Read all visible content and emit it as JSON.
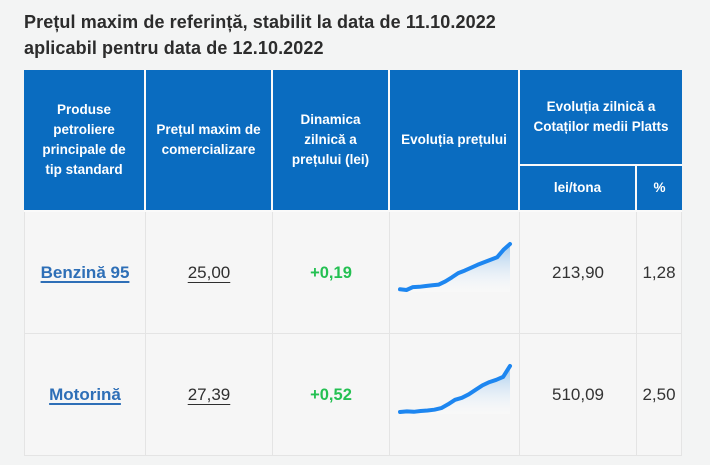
{
  "title": {
    "line1": "Prețul maxim de referință, stabilit la data de 11.10.2022",
    "line2": "aplicabil pentru data de 12.10.2022"
  },
  "table": {
    "headers": {
      "product": "Produse petroliere principale de tip standard",
      "max_price": "Prețul maxim de comercializare",
      "daily_dynamic": "Dinamica zilnică a prețului (lei)",
      "price_evolution": "Evoluția prețului",
      "platts": "Evoluția zilnică a Cotaților medii Platts",
      "platts_lei": "lei/tona",
      "platts_pct": "%"
    },
    "rows": [
      {
        "product": "Benzină 95",
        "max_price": "25,00",
        "daily_delta": "+0,19",
        "platts_lei": "213,90",
        "platts_pct": "1,28"
      },
      {
        "product": "Motorină",
        "max_price": "27,39",
        "daily_delta": "+0,52",
        "platts_lei": "510,09",
        "platts_pct": "2,50"
      }
    ]
  },
  "chart_data": [
    {
      "type": "line",
      "name": "Evoluția prețului — Benzină 95",
      "values": [
        1.0,
        0.9,
        1.3,
        1.35,
        1.45,
        1.55,
        1.65,
        2.1,
        2.65,
        3.25,
        3.6,
        4.0,
        4.4,
        4.75,
        5.1,
        5.45,
        6.5,
        7.3
      ],
      "axes_visible": false,
      "area": true
    },
    {
      "type": "line",
      "name": "Evoluția prețului — Motorină",
      "values": [
        0.95,
        1.05,
        0.98,
        1.1,
        1.18,
        1.3,
        1.55,
        2.15,
        2.85,
        3.15,
        3.7,
        4.4,
        5.1,
        5.6,
        5.95,
        6.4,
        8.1
      ],
      "axes_visible": false,
      "area": true
    }
  ],
  "colors": {
    "header_bg": "#0a6cc0",
    "link_blue": "#2e6fb7",
    "positive_green": "#24c052",
    "spark_line": "#1d86f0",
    "spark_fill_top": "#9cc6ec",
    "page_bg": "#f3f4f4",
    "cell_bg": "#f6f6f6"
  }
}
